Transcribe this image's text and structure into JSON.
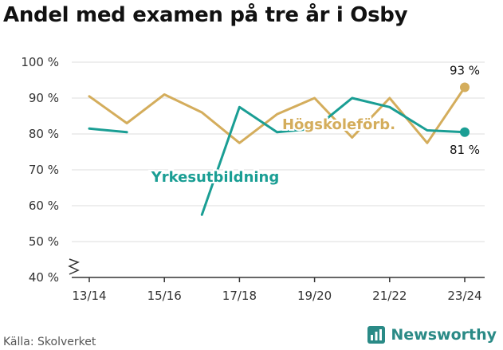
{
  "title": "Andel med examen på tre år i Osby",
  "source": "Källa: Skolverket",
  "brand": {
    "name": "Newsworthy",
    "icon": "newsworthy-logo-icon"
  },
  "colors": {
    "hogskole": "#d4ad5c",
    "yrkes": "#1a9e94",
    "grid": "#dddddd",
    "axis": "#333333"
  },
  "chart_data": {
    "type": "line",
    "x": [
      "13/14",
      "14/15",
      "15/16",
      "16/17",
      "17/18",
      "18/19",
      "19/20",
      "20/21",
      "21/22",
      "22/23",
      "23/24"
    ],
    "xticks": [
      "13/14",
      "15/16",
      "17/18",
      "19/20",
      "21/22",
      "23/24"
    ],
    "ylim": [
      40,
      100
    ],
    "yticks": [
      40,
      50,
      60,
      70,
      80,
      90,
      100
    ],
    "yticklabels": [
      "40 %",
      "50 %",
      "60 %",
      "70 %",
      "80 %",
      "90 %",
      "100 %"
    ],
    "axis_break": true,
    "series": [
      {
        "name": "Högskoleförb.",
        "color": "#d4ad5c",
        "values": [
          90.5,
          83,
          91,
          86,
          77.5,
          85.5,
          90,
          79,
          90,
          77.5,
          93
        ],
        "end_label": "93 %"
      },
      {
        "name": "Yrkesutbildning",
        "color": "#1a9e94",
        "values": [
          81.5,
          80.5,
          null,
          57.5,
          87.5,
          80.5,
          81.5,
          90,
          87.5,
          81,
          80.5
        ],
        "end_label": "81 %"
      }
    ]
  }
}
